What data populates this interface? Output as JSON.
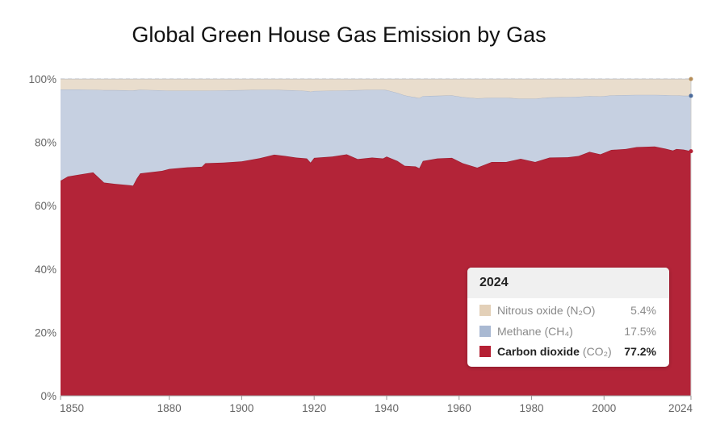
{
  "chart_data": {
    "type": "area",
    "stacked": true,
    "normalized": true,
    "title": "Global Green House Gas Emission by Gas",
    "xlabel": "",
    "ylabel": "",
    "xlim": [
      1850,
      2024
    ],
    "ylim": [
      0,
      100
    ],
    "x_ticks": [
      "1850",
      "1880",
      "1900",
      "1920",
      "1940",
      "1960",
      "1980",
      "2000",
      "2024"
    ],
    "y_ticks": [
      "0%",
      "20%",
      "40%",
      "60%",
      "80%",
      "100%"
    ],
    "grid": "horizontal dashed",
    "x": [
      1850,
      1852,
      1855,
      1859,
      1862,
      1865,
      1869,
      1870,
      1871,
      1872,
      1878,
      1880,
      1885,
      1889,
      1890,
      1895,
      1900,
      1905,
      1909,
      1912,
      1915,
      1918,
      1919,
      1920,
      1925,
      1929,
      1932,
      1936,
      1939,
      1940,
      1943,
      1945,
      1948,
      1949,
      1950,
      1954,
      1958,
      1961,
      1965,
      1969,
      1973,
      1977,
      1981,
      1985,
      1990,
      1993,
      1996,
      1999,
      2002,
      2006,
      2009,
      2014,
      2017,
      2019,
      2020,
      2022,
      2024
    ],
    "series": [
      {
        "name": "Carbon dioxide",
        "formula": "CO₂",
        "color": "#b32438",
        "values": [
          67.9,
          69.2,
          69.8,
          70.5,
          67.3,
          66.9,
          66.5,
          66.3,
          68.5,
          70.2,
          71.0,
          71.6,
          72.1,
          72.3,
          73.4,
          73.6,
          74.0,
          75.0,
          76.1,
          75.7,
          75.2,
          74.9,
          73.6,
          75.1,
          75.5,
          76.2,
          74.7,
          75.2,
          74.9,
          75.5,
          74.1,
          72.6,
          72.4,
          71.8,
          74.1,
          74.9,
          75.1,
          73.4,
          72.0,
          73.8,
          73.8,
          74.8,
          73.8,
          75.2,
          75.3,
          75.7,
          77.0,
          76.2,
          77.6,
          77.9,
          78.5,
          78.7,
          78.0,
          77.4,
          77.9,
          77.7,
          77.2
        ]
      },
      {
        "name": "Methane",
        "formula": "CH₄",
        "color": "#c6d0e1",
        "values": [
          28.8,
          27.5,
          26.9,
          26.1,
          29.2,
          29.6,
          29.9,
          30.1,
          28.0,
          26.4,
          25.4,
          24.7,
          24.2,
          24.0,
          22.9,
          22.8,
          22.5,
          21.6,
          20.5,
          20.8,
          21.2,
          21.3,
          22.4,
          21.1,
          20.8,
          20.2,
          21.8,
          21.4,
          21.7,
          21.0,
          21.5,
          22.2,
          21.8,
          22.2,
          20.5,
          19.8,
          19.7,
          20.9,
          21.9,
          20.3,
          20.3,
          19.0,
          20.0,
          19.0,
          19.0,
          18.7,
          17.6,
          18.3,
          17.2,
          17.0,
          16.5,
          16.3,
          16.9,
          17.4,
          16.9,
          17.0,
          17.5
        ]
      },
      {
        "name": "Nitrous oxide",
        "formula": "N₂O",
        "color": "#e9ddcd",
        "values": [
          3.3,
          3.3,
          3.3,
          3.4,
          3.5,
          3.5,
          3.6,
          3.6,
          3.5,
          3.4,
          3.6,
          3.7,
          3.7,
          3.7,
          3.7,
          3.6,
          3.5,
          3.4,
          3.4,
          3.5,
          3.6,
          3.8,
          4.0,
          3.8,
          3.7,
          3.6,
          3.5,
          3.4,
          3.4,
          3.5,
          4.4,
          5.2,
          5.8,
          6.0,
          5.4,
          5.3,
          5.2,
          5.7,
          6.1,
          5.9,
          5.9,
          6.2,
          6.2,
          5.8,
          5.7,
          5.6,
          5.4,
          5.5,
          5.2,
          5.1,
          5.0,
          5.0,
          5.1,
          5.2,
          5.2,
          5.3,
          5.4
        ]
      }
    ],
    "tooltip": {
      "year": "2024",
      "rows": [
        {
          "name": "Nitrous oxide",
          "formula": "(N₂O)",
          "value": "5.4%",
          "swatch": "#e3d0b8",
          "dot": "#b58d58"
        },
        {
          "name": "Methane",
          "formula": "(CH₄)",
          "value": "17.5%",
          "swatch": "#a9b9d2",
          "dot": "#4a6b9c"
        },
        {
          "name": "Carbon dioxide",
          "formula": "(CO₂)",
          "value": "77.2%",
          "swatch": "#b52034",
          "dot": "#b52034",
          "highlight": true
        }
      ]
    }
  }
}
